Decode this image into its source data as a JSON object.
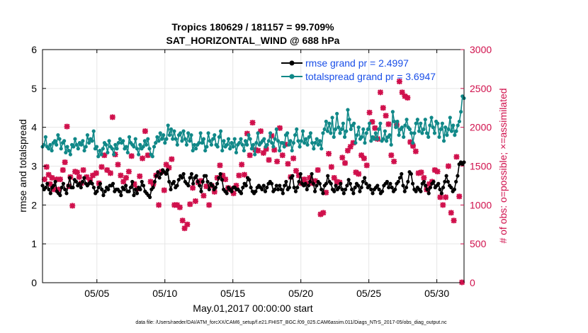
{
  "chart_data": {
    "type": "line",
    "title_line1": "Tropics 180629 / 181157 = 99.709%",
    "title_line2": "SAT_HORIZONTAL_WIND @ 688 hPa",
    "xlabel": "May.01,2017 00:00:00 start",
    "ylabel": "rmse and totalspread",
    "ylabel_right": "# of obs: o=possible; ×=assimilated",
    "footnote": "data file: /Users/raeder/DAI/ATM_forcXX/CAM6_setup/f.e21.FHIST_BGC.f09_025.CAM6assim.011/Diags_NTrS_2017-05/obs_diag_output.nc",
    "xlim": [
      1,
      32
    ],
    "ylim": [
      0,
      6
    ],
    "ylim_right": [
      0,
      3000
    ],
    "grid": true,
    "legend_position": "top-right",
    "x_ticks": [
      5,
      10,
      15,
      20,
      25,
      30
    ],
    "x_tick_labels": [
      "05/05",
      "05/10",
      "05/15",
      "05/20",
      "05/25",
      "05/30"
    ],
    "y_ticks": [
      0,
      1,
      2,
      3,
      4,
      5,
      6
    ],
    "y_tick_labels": [
      "0",
      "1",
      "2",
      "3",
      "4",
      "5",
      "6"
    ],
    "y_right_ticks": [
      0,
      500,
      1000,
      1500,
      2000,
      2500,
      3000
    ],
    "y_right_tick_labels": [
      "0",
      "500",
      "1000",
      "1500",
      "2000",
      "2500",
      "3000"
    ],
    "colors": {
      "rmse": "#000000",
      "spread": "#108888",
      "obs": "#d0104c",
      "legend_text": "#1a4fe8"
    },
    "series": [
      {
        "name": "rmse grand pr = 2.4997",
        "values": [
          2.5,
          2.4,
          2.45,
          2.55,
          2.4,
          2.3,
          2.45,
          2.5,
          2.6,
          2.35,
          2.3,
          2.25,
          2.45,
          2.55,
          2.4,
          2.3,
          2.5,
          2.7,
          2.45,
          2.45,
          2.65,
          2.6,
          2.5,
          2.55,
          2.45,
          2.6,
          2.7,
          2.55,
          2.5,
          2.55,
          2.6,
          2.55,
          2.45,
          2.3,
          2.35,
          2.45,
          2.55,
          2.4,
          2.25,
          2.35,
          2.45,
          2.4,
          2.5,
          2.5,
          2.55,
          2.35,
          2.4,
          2.4,
          2.35,
          2.25,
          2.45,
          2.4,
          2.5,
          2.35,
          2.35,
          2.45,
          2.6,
          2.25,
          2.4,
          2.3,
          2.45,
          2.4,
          2.6,
          2.5,
          2.35,
          2.3,
          2.25,
          2.2,
          2.4,
          2.45,
          2.6,
          2.75,
          2.85,
          2.7,
          2.8,
          2.9,
          2.85,
          2.8,
          2.9,
          2.6,
          2.4,
          2.55,
          2.6,
          2.45,
          2.5,
          2.65,
          2.75,
          2.7,
          2.8,
          2.6,
          2.55,
          2.5,
          2.7,
          2.8,
          2.55,
          2.7,
          2.75,
          2.6,
          2.5,
          2.35,
          2.6,
          2.75,
          2.75,
          2.6,
          2.4,
          2.55,
          2.5,
          2.4,
          2.45,
          2.55,
          2.7,
          2.8,
          2.65,
          2.4,
          2.35,
          2.3,
          2.45,
          2.4,
          2.35,
          2.45,
          2.45,
          2.4,
          2.4,
          2.35,
          2.3,
          2.45,
          2.55,
          2.5,
          2.7,
          2.65,
          2.45,
          2.35,
          2.3,
          2.35,
          2.45,
          2.5,
          2.45,
          2.4,
          2.5,
          2.35,
          2.45,
          2.55,
          2.6,
          2.55,
          2.35,
          2.4,
          2.5,
          2.4,
          2.5,
          2.4,
          2.3,
          2.5,
          2.6,
          2.4,
          2.45,
          2.7,
          2.75,
          2.45,
          2.35,
          2.45,
          2.6,
          2.8,
          2.55,
          2.5,
          2.55,
          2.4,
          2.5,
          2.6,
          2.8,
          2.55,
          2.35,
          2.5,
          2.6,
          2.55,
          2.4,
          2.3,
          2.5,
          2.55,
          2.75,
          2.6,
          2.55,
          2.4,
          2.35,
          2.5,
          2.4,
          2.45,
          2.55,
          2.4,
          2.3,
          2.4,
          2.5,
          2.65,
          2.55,
          2.4,
          2.3,
          2.45,
          2.55,
          2.5,
          2.35,
          2.45,
          2.6,
          2.7,
          2.55,
          2.45,
          2.5,
          2.4,
          2.3,
          2.4,
          2.45,
          2.5,
          2.4,
          2.3,
          2.35,
          2.5,
          2.55,
          2.6,
          2.45,
          2.55,
          2.45,
          2.35,
          2.4,
          2.55,
          2.6,
          2.7,
          2.8,
          2.5,
          2.35,
          2.45,
          2.6,
          2.85,
          2.8,
          2.55,
          2.4,
          2.35,
          2.45,
          2.4,
          2.35,
          2.55,
          2.6,
          2.5,
          2.4,
          2.3,
          2.45,
          2.55,
          2.6,
          2.45,
          2.5,
          2.55,
          2.4,
          2.3,
          2.45,
          2.6,
          2.75,
          2.6,
          2.5,
          2.45,
          2.35,
          2.4,
          2.6,
          2.75,
          3.05,
          3.1,
          3.05,
          3.1
        ]
      },
      {
        "name": "totalspread grand pr = 3.6947",
        "values": [
          3.5,
          3.55,
          3.75,
          3.5,
          3.45,
          3.55,
          3.4,
          3.6,
          3.65,
          3.55,
          3.8,
          3.7,
          3.45,
          3.6,
          3.65,
          3.35,
          3.5,
          3.4,
          3.3,
          3.55,
          3.5,
          3.7,
          3.55,
          3.45,
          3.6,
          3.55,
          3.65,
          3.4,
          3.5,
          3.8,
          3.6,
          3.7,
          3.65,
          3.9,
          3.45,
          3.5,
          3.25,
          3.4,
          3.3,
          3.45,
          3.6,
          3.55,
          3.35,
          3.65,
          3.5,
          3.45,
          3.3,
          3.55,
          3.45,
          3.6,
          3.7,
          3.6,
          3.65,
          3.45,
          3.5,
          3.35,
          3.75,
          3.6,
          3.55,
          3.5,
          3.7,
          3.45,
          3.3,
          3.55,
          3.45,
          3.5,
          3.65,
          3.55,
          3.7,
          3.45,
          3.3,
          3.25,
          3.5,
          3.6,
          3.75,
          3.65,
          3.85,
          3.7,
          3.8,
          3.6,
          3.7,
          4.05,
          3.8,
          3.95,
          3.7,
          3.9,
          3.7,
          3.55,
          3.8,
          3.85,
          3.65,
          3.9,
          3.7,
          3.55,
          3.85,
          3.65,
          3.8,
          3.4,
          3.55,
          3.45,
          3.55,
          3.6,
          3.85,
          3.6,
          3.7,
          3.4,
          3.5,
          3.85,
          3.65,
          3.55,
          3.7,
          3.8,
          3.55,
          3.5,
          3.75,
          3.9,
          3.4,
          3.65,
          3.5,
          3.55,
          3.7,
          3.45,
          3.6,
          3.5,
          3.7,
          3.35,
          3.55,
          3.6,
          3.7,
          3.55,
          3.4,
          3.65,
          3.55,
          3.8,
          3.7,
          3.45,
          3.55,
          3.3,
          3.6,
          3.85,
          3.55,
          3.6,
          3.65,
          3.7,
          3.5,
          3.55,
          3.65,
          3.85,
          3.6,
          3.5,
          3.7,
          3.95,
          3.65,
          3.4,
          3.6,
          3.6,
          3.5,
          3.8,
          3.85,
          3.55,
          3.65,
          3.4,
          3.6,
          3.8,
          3.95,
          3.65,
          3.5,
          3.65,
          3.9,
          3.6,
          3.7,
          3.55,
          3.75,
          3.85,
          3.6,
          3.45,
          3.6,
          3.7,
          3.55,
          3.65,
          3.45,
          3.85,
          3.95,
          4.15,
          3.9,
          4.1,
          3.85,
          4.25,
          3.75,
          3.95,
          4.35,
          4.0,
          3.85,
          3.95,
          4.1,
          3.75,
          3.9,
          4.45,
          4.2,
          3.95,
          4.05,
          4.1,
          3.6,
          3.8,
          4.0,
          3.7,
          3.75,
          3.95,
          3.6,
          3.85,
          3.95,
          4.1,
          3.65,
          3.75,
          3.7,
          3.85,
          3.7,
          3.95,
          4.1,
          3.65,
          3.7,
          3.9,
          3.65,
          3.75,
          3.8,
          3.55,
          4.4,
          4.15,
          4.0,
          4.15,
          3.8,
          3.95,
          4.0,
          3.75,
          4.05,
          4.2,
          4.0,
          3.95,
          3.85,
          3.6,
          3.85,
          4.1,
          4.2,
          3.9,
          4.1,
          3.85,
          3.95,
          4.2,
          3.85,
          3.75,
          4.05,
          4.25,
          4.0,
          3.85,
          4.15,
          4.1,
          3.75,
          3.95,
          4.1,
          3.65,
          4.0,
          3.8,
          3.95,
          4.25,
          3.9,
          4.05,
          3.8,
          3.9,
          4.05,
          4.15,
          4.4,
          4.8,
          4.75
        ]
      }
    ],
    "obs_assimilated": [
      [
        1.15,
        1330
      ],
      [
        1.3,
        1490
      ],
      [
        1.45,
        1390
      ],
      [
        1.55,
        1270
      ],
      [
        1.7,
        1350
      ],
      [
        1.85,
        1200
      ],
      [
        2.05,
        1330
      ],
      [
        2.2,
        1200
      ],
      [
        2.3,
        1330
      ],
      [
        2.5,
        1450
      ],
      [
        2.65,
        1550
      ],
      [
        2.8,
        2010
      ],
      [
        2.95,
        1240
      ],
      [
        3.05,
        1360
      ],
      [
        3.2,
        990
      ],
      [
        3.4,
        1430
      ],
      [
        3.55,
        1420
      ],
      [
        3.7,
        1360
      ],
      [
        3.85,
        1280
      ],
      [
        4.0,
        1450
      ],
      [
        4.25,
        1360
      ],
      [
        4.5,
        1320
      ],
      [
        4.7,
        1380
      ],
      [
        4.95,
        1410
      ],
      [
        5.15,
        1280
      ],
      [
        5.35,
        1490
      ],
      [
        5.55,
        1640
      ],
      [
        5.75,
        1450
      ],
      [
        6.0,
        1410
      ],
      [
        6.15,
        2130
      ],
      [
        6.35,
        1650
      ],
      [
        6.55,
        1520
      ],
      [
        6.75,
        1380
      ],
      [
        6.95,
        1300
      ],
      [
        7.15,
        1350
      ],
      [
        7.35,
        1430
      ],
      [
        7.55,
        1630
      ],
      [
        7.75,
        1270
      ],
      [
        7.95,
        1210
      ],
      [
        8.15,
        1370
      ],
      [
        8.35,
        1600
      ],
      [
        8.55,
        1950
      ],
      [
        8.75,
        1640
      ],
      [
        8.95,
        1300
      ],
      [
        9.15,
        1270
      ],
      [
        9.35,
        1380
      ],
      [
        9.55,
        1000
      ],
      [
        9.75,
        1430
      ],
      [
        9.95,
        1190
      ],
      [
        10.1,
        1520
      ],
      [
        10.3,
        1480
      ],
      [
        10.5,
        1590
      ],
      [
        10.7,
        1000
      ],
      [
        10.9,
        1000
      ],
      [
        11.1,
        970
      ],
      [
        11.3,
        800
      ],
      [
        11.45,
        700
      ],
      [
        11.65,
        750
      ],
      [
        11.85,
        1010
      ],
      [
        12.05,
        1220
      ],
      [
        12.25,
        1050
      ],
      [
        12.45,
        1290
      ],
      [
        12.65,
        1310
      ],
      [
        12.85,
        1120
      ],
      [
        13.05,
        1240
      ],
      [
        13.25,
        1000
      ],
      [
        13.45,
        1250
      ],
      [
        13.65,
        1170
      ],
      [
        13.85,
        1350
      ],
      [
        14.05,
        1510
      ],
      [
        14.25,
        1380
      ],
      [
        14.45,
        1330
      ],
      [
        14.65,
        1220
      ],
      [
        14.85,
        1200
      ],
      [
        15.05,
        1150
      ],
      [
        15.25,
        1250
      ],
      [
        15.45,
        1380
      ],
      [
        15.65,
        1520
      ],
      [
        15.85,
        1390
      ],
      [
        16.05,
        1920
      ],
      [
        16.25,
        1640
      ],
      [
        16.45,
        2060
      ],
      [
        16.65,
        1710
      ],
      [
        16.85,
        1700
      ],
      [
        17.05,
        1950
      ],
      [
        17.25,
        1670
      ],
      [
        17.45,
        1720
      ],
      [
        17.65,
        1580
      ],
      [
        17.85,
        1890
      ],
      [
        18.05,
        1710
      ],
      [
        18.25,
        1560
      ],
      [
        18.45,
        1990
      ],
      [
        18.65,
        1640
      ],
      [
        18.85,
        1780
      ],
      [
        19.05,
        1530
      ],
      [
        19.25,
        1360
      ],
      [
        19.45,
        1600
      ],
      [
        19.65,
        1440
      ],
      [
        19.85,
        1380
      ],
      [
        20.05,
        1280
      ],
      [
        20.25,
        1330
      ],
      [
        20.45,
        1280
      ],
      [
        20.65,
        1350
      ],
      [
        20.85,
        1280
      ],
      [
        21.05,
        1310
      ],
      [
        21.25,
        1450
      ],
      [
        21.45,
        880
      ],
      [
        21.65,
        900
      ],
      [
        21.85,
        1160
      ],
      [
        22.05,
        1660
      ],
      [
        22.25,
        1490
      ],
      [
        22.45,
        1350
      ],
      [
        22.65,
        1300
      ],
      [
        22.85,
        1290
      ],
      [
        23.05,
        1610
      ],
      [
        23.25,
        1540
      ],
      [
        23.45,
        1700
      ],
      [
        23.65,
        1750
      ],
      [
        23.85,
        1800
      ],
      [
        24.05,
        1420
      ],
      [
        24.25,
        1400
      ],
      [
        24.45,
        1640
      ],
      [
        24.65,
        1600
      ],
      [
        24.85,
        1510
      ],
      [
        25.05,
        2190
      ],
      [
        25.25,
        2070
      ],
      [
        25.45,
        1990
      ],
      [
        25.65,
        1850
      ],
      [
        25.85,
        2450
      ],
      [
        26.05,
        2250
      ],
      [
        26.25,
        2150
      ],
      [
        26.45,
        2040
      ],
      [
        26.65,
        1640
      ],
      [
        26.85,
        1560
      ],
      [
        27.05,
        2030
      ],
      [
        27.25,
        2590
      ],
      [
        27.45,
        2450
      ],
      [
        27.65,
        2400
      ],
      [
        27.85,
        2380
      ],
      [
        28.05,
        1810
      ],
      [
        28.25,
        1760
      ],
      [
        28.45,
        1690
      ],
      [
        28.65,
        1410
      ],
      [
        28.85,
        1420
      ],
      [
        29.05,
        1350
      ],
      [
        29.25,
        1200
      ],
      [
        29.45,
        1270
      ],
      [
        29.65,
        1300
      ],
      [
        29.85,
        1450
      ],
      [
        30.05,
        1430
      ],
      [
        30.25,
        1100
      ],
      [
        30.45,
        1000
      ],
      [
        30.65,
        1100
      ],
      [
        30.85,
        1500
      ],
      [
        31.05,
        900
      ],
      [
        31.25,
        800
      ],
      [
        31.45,
        1620
      ],
      [
        31.65,
        1110
      ],
      [
        31.85,
        5
      ]
    ]
  }
}
